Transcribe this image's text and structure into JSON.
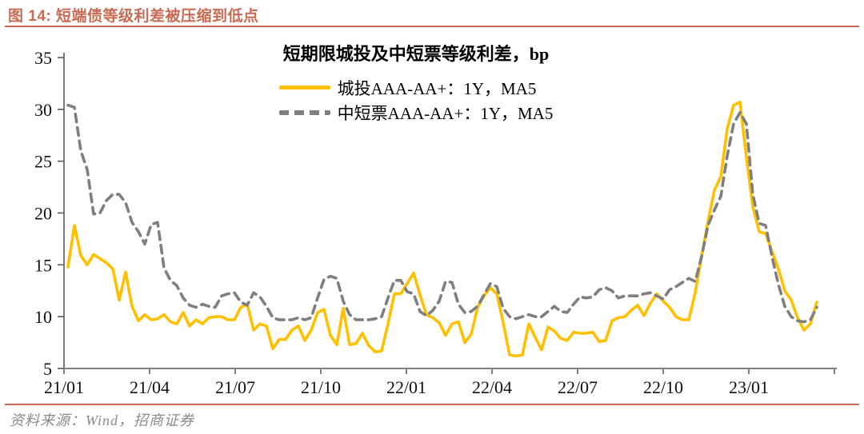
{
  "header": {
    "title": "图 14: 短端债等级利差被压缩到低点"
  },
  "footer": {
    "source": "资料来源：Wind，招商证券"
  },
  "colors": {
    "accent": "#C96A53",
    "series_chengtou": "#FFC000",
    "series_zhongduanpiao": "#7F7F7F",
    "axis": "#808080",
    "tick_text": "#111111",
    "source_text": "#8a8a8a"
  },
  "chart_data": {
    "type": "line",
    "title": "短期限城投及中短票等级利差，bp",
    "legend_position": "top-center",
    "grid": false,
    "ylim": [
      5,
      35
    ],
    "y_ticks": [
      5,
      10,
      15,
      20,
      25,
      30,
      35
    ],
    "x_tick_labels": [
      "21/01",
      "21/04",
      "21/07",
      "21/10",
      "22/01",
      "22/04",
      "22/07",
      "22/10",
      "23/01"
    ],
    "x_note": "weekly samples, Jan 2021 - Mar 2023",
    "series": [
      {
        "name": "城投AAA-AA+：1Y，MA5",
        "color": "#FFC000",
        "style": "solid",
        "values": [
          14.8,
          18.8,
          15.9,
          15.0,
          16.0,
          15.6,
          15.2,
          14.6,
          11.6,
          14.3,
          11.0,
          9.6,
          10.2,
          9.7,
          9.8,
          10.2,
          9.5,
          9.3,
          10.4,
          9.1,
          9.7,
          9.3,
          9.9,
          10.0,
          10.0,
          9.7,
          9.7,
          10.9,
          11.2,
          8.7,
          9.3,
          9.1,
          6.9,
          7.8,
          7.8,
          8.7,
          9.1,
          7.7,
          8.7,
          10.4,
          10.7,
          8.2,
          7.3,
          10.8,
          7.3,
          7.4,
          8.4,
          7.2,
          6.6,
          6.7,
          9.3,
          12.2,
          12.2,
          13.2,
          14.2,
          12.1,
          10.2,
          9.9,
          9.4,
          8.2,
          9.3,
          9.5,
          7.5,
          8.3,
          10.9,
          12.0,
          12.8,
          12.2,
          9.4,
          6.3,
          6.2,
          6.3,
          9.3,
          8.0,
          6.8,
          9.0,
          8.6,
          7.9,
          7.7,
          8.5,
          8.4,
          8.4,
          8.5,
          7.6,
          7.7,
          9.6,
          9.9,
          10.0,
          10.6,
          11.1,
          10.1,
          11.3,
          12.2,
          11.5,
          10.9,
          10.0,
          9.7,
          9.7,
          12.3,
          15.8,
          19.2,
          22.2,
          23.5,
          28.1,
          30.4,
          30.7,
          25.4,
          20.6,
          18.2,
          18.0,
          16.3,
          14.6,
          12.5,
          11.6,
          9.9,
          8.7,
          9.3,
          11.4
        ]
      },
      {
        "name": "中短票AAA-AA+：1Y，MA5",
        "color": "#7F7F7F",
        "style": "dashed",
        "values": [
          30.4,
          30.2,
          26.0,
          24.2,
          19.9,
          20.0,
          21.2,
          21.8,
          21.8,
          21.0,
          19.1,
          18.2,
          17.0,
          18.9,
          19.1,
          14.7,
          13.5,
          13.0,
          11.8,
          11.1,
          10.9,
          11.2,
          11.0,
          10.9,
          12.0,
          12.2,
          12.3,
          11.4,
          11.1,
          12.3,
          11.9,
          11.0,
          9.9,
          9.7,
          9.7,
          9.7,
          9.9,
          9.7,
          9.9,
          11.8,
          13.6,
          13.9,
          13.7,
          11.5,
          10.2,
          9.7,
          9.7,
          9.7,
          9.8,
          10.0,
          11.8,
          13.5,
          13.5,
          12.4,
          12.2,
          10.5,
          10.1,
          10.6,
          11.5,
          13.4,
          13.3,
          11.2,
          10.4,
          10.5,
          11.0,
          12.1,
          13.2,
          12.9,
          10.8,
          10.0,
          9.8,
          10.0,
          10.2,
          10.0,
          10.0,
          10.5,
          11.0,
          10.5,
          10.4,
          11.2,
          11.9,
          11.8,
          11.9,
          12.6,
          12.8,
          12.5,
          11.8,
          12.0,
          12.0,
          12.0,
          12.2,
          12.3,
          12.0,
          11.7,
          12.6,
          12.9,
          13.3,
          13.7,
          13.4,
          15.8,
          18.8,
          20.3,
          21.6,
          25.5,
          28.6,
          29.7,
          28.6,
          21.8,
          19.0,
          18.8,
          15.8,
          13.1,
          11.0,
          10.0,
          9.6,
          9.5,
          9.7,
          10.9
        ]
      }
    ]
  }
}
